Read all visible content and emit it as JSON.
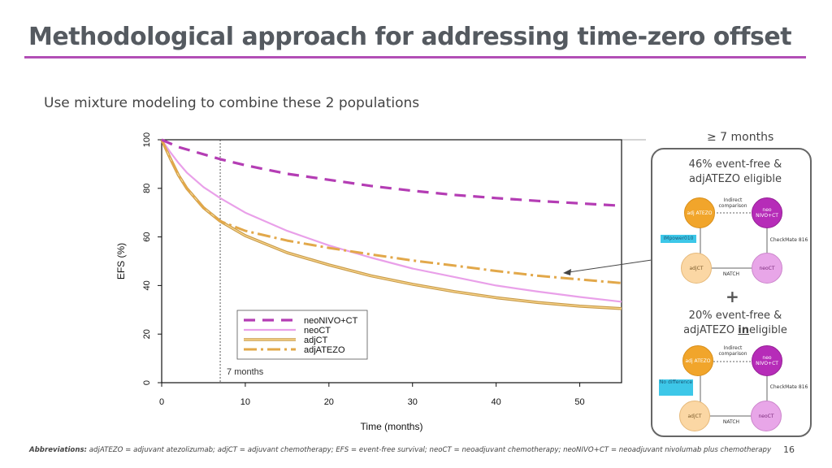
{
  "slide": {
    "title": "Methodological approach for addressing time-zero offset",
    "subtitle": "Use mixture modeling to combine these 2 populations",
    "page_number": "16",
    "footer_label": "Abbreviations:",
    "footer_text": " adjATEZO = adjuvant atezolizumab; adjCT = adjuvant chemotherapy; EFS = event-free survival; neoCT = neoadjuvant chemotherapy; neoNIVO+CT = neoadjuvant nivolumab plus chemotherapy"
  },
  "right_panel": {
    "header": "≥ 7 months",
    "upper_line1": "46% event-free &",
    "upper_line2": "adjATEZO eligible",
    "plus": "+",
    "lower_line1": "20% event-free &",
    "lower_line2_pre": "adjATEZO ",
    "lower_line2_em": "in",
    "lower_line2_post": "eligible",
    "upper_diagram": {
      "node_adjatezo": "adj ATEZO",
      "node_neonivo": "neo NIVO+CT",
      "node_adjct": "adjCT",
      "node_neoct": "neoCT",
      "top_edge": "Indirect comparison",
      "left_tag": "IMpower010",
      "right_edge": "CheckMate 816",
      "bottom_edge": "NATCH"
    },
    "lower_diagram": {
      "node_adjatezo": "adj ATEZO",
      "node_neonivo": "neo NIVO+CT",
      "node_adjct": "adjCT",
      "node_neoct": "neoCT",
      "top_edge": "Indirect comparison",
      "left_tag": "No difference",
      "right_edge": "CheckMate 816",
      "bottom_edge": "NATCH"
    }
  },
  "colors": {
    "neoNIVO_CT": "#b43db4",
    "neoCT": "#e9a0e9",
    "adjCT": "#f8d48a",
    "adjATEZO": "#e2a84a",
    "accent_rule": "#b24fb6"
  },
  "chart_data": {
    "type": "line",
    "xlabel": "Time (months)",
    "ylabel": "EFS (%)",
    "xlim": [
      0,
      55
    ],
    "ylim": [
      0,
      100
    ],
    "x_ticks": [
      0,
      10,
      20,
      30,
      40,
      50
    ],
    "y_ticks": [
      0,
      20,
      40,
      60,
      80,
      100
    ],
    "vline": {
      "x": 7,
      "label": "7 months"
    },
    "legend_position": "bottom-center",
    "series": [
      {
        "name": "neoNIVO+CT",
        "style": "dashed",
        "x": [
          0,
          2,
          4,
          7,
          10,
          15,
          20,
          25,
          30,
          35,
          40,
          45,
          50,
          55
        ],
        "y": [
          100,
          97,
          95,
          92,
          89.5,
          86,
          83.5,
          81,
          79,
          77.3,
          76,
          74.8,
          73.8,
          72.8
        ]
      },
      {
        "name": "neoCT",
        "style": "solid",
        "x": [
          0,
          1,
          2,
          3,
          5,
          7,
          10,
          15,
          20,
          25,
          30,
          35,
          40,
          45,
          50,
          55
        ],
        "y": [
          100,
          95,
          90.5,
          86.5,
          80.5,
          76,
          70,
          62.5,
          56.5,
          51.5,
          47,
          43.5,
          40,
          37.5,
          35.3,
          33.3
        ]
      },
      {
        "name": "adjCT",
        "style": "solid",
        "x": [
          0,
          1,
          2,
          3,
          5,
          7,
          10,
          15,
          20,
          25,
          30,
          35,
          40,
          45,
          50,
          55
        ],
        "y": [
          100,
          92.5,
          85.5,
          80,
          72,
          66.5,
          60.5,
          53.5,
          48.5,
          44,
          40.5,
          37.5,
          35,
          33,
          31.5,
          30.5
        ]
      },
      {
        "name": "adjATEZO",
        "style": "dashdot",
        "x": [
          0,
          1,
          2,
          3,
          5,
          7,
          10,
          15,
          20,
          25,
          30,
          35,
          40,
          45,
          50,
          55
        ],
        "y": [
          100,
          92.5,
          85.5,
          80,
          72,
          66.5,
          62.5,
          58.5,
          55.5,
          52.8,
          50.3,
          48.2,
          46,
          44,
          42.5,
          41
        ]
      }
    ]
  }
}
